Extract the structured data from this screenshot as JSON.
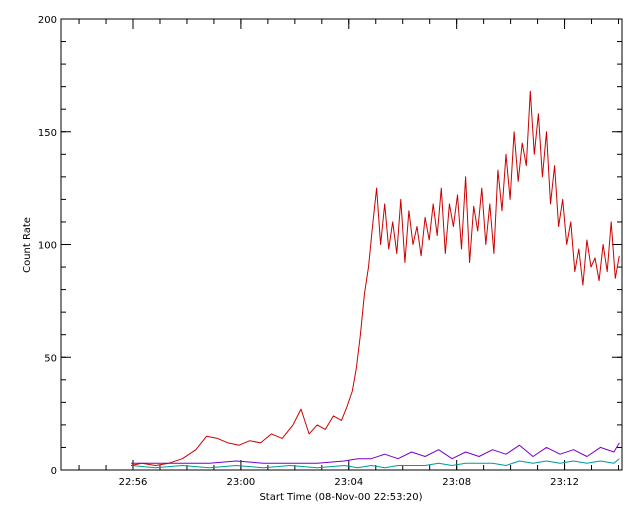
{
  "chart_data": {
    "type": "line",
    "title": "",
    "xlabel": "Start Time (08-Nov-00 22:53:20)",
    "ylabel": "Count Rate",
    "x_units": "minutes after 22:53:20",
    "xlim": [
      0,
      20.8
    ],
    "ylim": [
      0,
      200
    ],
    "x_ticks": [
      {
        "value": 2.67,
        "label": "22:56"
      },
      {
        "value": 6.67,
        "label": "23:00"
      },
      {
        "value": 10.67,
        "label": "23:04"
      },
      {
        "value": 14.67,
        "label": "23:08"
      },
      {
        "value": 18.67,
        "label": "23:12"
      }
    ],
    "y_ticks": [
      {
        "value": 0,
        "label": "0"
      },
      {
        "value": 50,
        "label": "50"
      },
      {
        "value": 100,
        "label": "100"
      },
      {
        "value": 150,
        "label": "150"
      },
      {
        "value": 200,
        "label": "200"
      }
    ],
    "grid": false,
    "legend": "none",
    "series": [
      {
        "color": "#cc0000",
        "x": [
          2.6,
          3.0,
          3.5,
          4.0,
          4.5,
          5.0,
          5.4,
          5.8,
          6.2,
          6.6,
          7.0,
          7.4,
          7.8,
          8.2,
          8.6,
          8.9,
          9.2,
          9.5,
          9.8,
          10.1,
          10.4,
          10.6,
          10.8,
          10.95,
          11.1,
          11.25,
          11.4,
          11.55,
          11.7,
          11.85,
          12.0,
          12.15,
          12.3,
          12.45,
          12.6,
          12.75,
          12.9,
          13.05,
          13.2,
          13.35,
          13.5,
          13.65,
          13.8,
          13.95,
          14.1,
          14.25,
          14.4,
          14.55,
          14.7,
          14.85,
          15.0,
          15.15,
          15.3,
          15.45,
          15.6,
          15.75,
          15.9,
          16.05,
          16.2,
          16.35,
          16.5,
          16.65,
          16.8,
          16.95,
          17.1,
          17.25,
          17.4,
          17.55,
          17.7,
          17.85,
          18.0,
          18.15,
          18.3,
          18.45,
          18.6,
          18.75,
          18.9,
          19.05,
          19.2,
          19.35,
          19.5,
          19.65,
          19.8,
          19.95,
          20.1,
          20.25,
          20.4,
          20.55,
          20.7
        ],
        "y": [
          2,
          3,
          2,
          3,
          5,
          9,
          15,
          14,
          12,
          11,
          13,
          12,
          16,
          14,
          20,
          27,
          16,
          20,
          18,
          24,
          22,
          28,
          35,
          45,
          60,
          78,
          90,
          108,
          125,
          100,
          118,
          98,
          110,
          96,
          120,
          92,
          115,
          100,
          108,
          95,
          112,
          102,
          118,
          104,
          125,
          96,
          118,
          108,
          122,
          98,
          130,
          92,
          117,
          106,
          125,
          100,
          118,
          96,
          133,
          115,
          140,
          120,
          150,
          128,
          145,
          135,
          168,
          140,
          158,
          130,
          150,
          118,
          135,
          108,
          120,
          100,
          110,
          88,
          98,
          82,
          102,
          90,
          94,
          84,
          100,
          88,
          110,
          85,
          95
        ]
      },
      {
        "color": "#7700cc",
        "x": [
          2.6,
          3.5,
          4.5,
          5.5,
          6.5,
          7.5,
          8.5,
          9.5,
          10.5,
          11.0,
          11.5,
          12.0,
          12.5,
          13.0,
          13.5,
          14.0,
          14.5,
          15.0,
          15.5,
          16.0,
          16.5,
          17.0,
          17.5,
          18.0,
          18.5,
          19.0,
          19.5,
          20.0,
          20.5,
          20.7
        ],
        "y": [
          3,
          3,
          3,
          3,
          4,
          3,
          3,
          3,
          4,
          5,
          5,
          7,
          5,
          8,
          6,
          9,
          5,
          8,
          6,
          9,
          7,
          11,
          6,
          10,
          7,
          9,
          6,
          10,
          8,
          12
        ]
      },
      {
        "color": "#009999",
        "x": [
          2.6,
          3.5,
          4.5,
          5.5,
          6.5,
          7.5,
          8.5,
          9.5,
          10.5,
          11.0,
          11.5,
          12.0,
          12.5,
          13.0,
          13.5,
          14.0,
          14.5,
          15.0,
          15.5,
          16.0,
          16.5,
          17.0,
          17.5,
          18.0,
          18.5,
          19.0,
          19.5,
          20.0,
          20.5,
          20.7
        ],
        "y": [
          2,
          1,
          2,
          1,
          2,
          1,
          2,
          1,
          2,
          1,
          2,
          1,
          2,
          2,
          2,
          3,
          2,
          3,
          3,
          3,
          2,
          4,
          3,
          4,
          3,
          4,
          3,
          4,
          3,
          5
        ]
      }
    ]
  }
}
